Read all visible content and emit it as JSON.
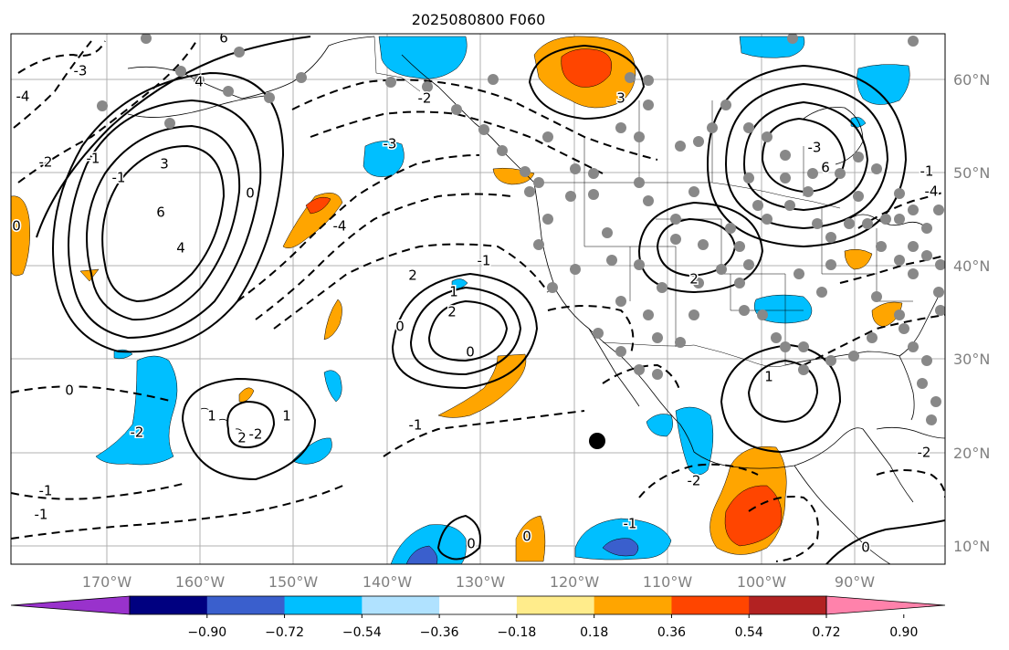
{
  "title": "2025080800 F060",
  "map": {
    "lon_labels": [
      "170°W",
      "160°W",
      "150°W",
      "140°W",
      "130°W",
      "120°W",
      "110°W",
      "100°W",
      "90°W"
    ],
    "lat_labels": [
      "60°N",
      "50°N",
      "40°N",
      "30°N",
      "20°N",
      "10°N"
    ],
    "grid": true,
    "contour_labels": [
      "6",
      "-4",
      "-3",
      "4",
      "-2",
      "-1",
      "3",
      "-1",
      "6",
      "4",
      "0",
      "-3",
      "-4",
      "-2",
      "0",
      "2",
      "1",
      "2",
      "0",
      "-1",
      "0",
      "1",
      "-2",
      "-2",
      "-1",
      "0",
      "-1",
      "1",
      "2",
      "-1",
      "0",
      "0",
      "-1",
      "-2",
      "3",
      "2",
      "6",
      "-3",
      "-1",
      "-4",
      "-2",
      "0",
      "1"
    ],
    "colors": {
      "positive_anomaly": "#ffa500",
      "strong_positive": "#ff4500",
      "negative_anomaly": "#00bfff",
      "strong_negative": "#3a5fcd",
      "station_dot": "#888888"
    }
  },
  "colorbar": {
    "tick_labels": [
      "−0.90",
      "−0.72",
      "−0.54",
      "−0.36",
      "−0.18",
      "0.18",
      "0.36",
      "0.54",
      "0.72",
      "0.90"
    ],
    "colors": [
      "#9932cc",
      "#000080",
      "#3a5fcd",
      "#00bfff",
      "#b0e2ff",
      "#ffffff",
      "#ffec8b",
      "#ffa500",
      "#ff4500",
      "#b22222",
      "#ff82ab"
    ]
  }
}
